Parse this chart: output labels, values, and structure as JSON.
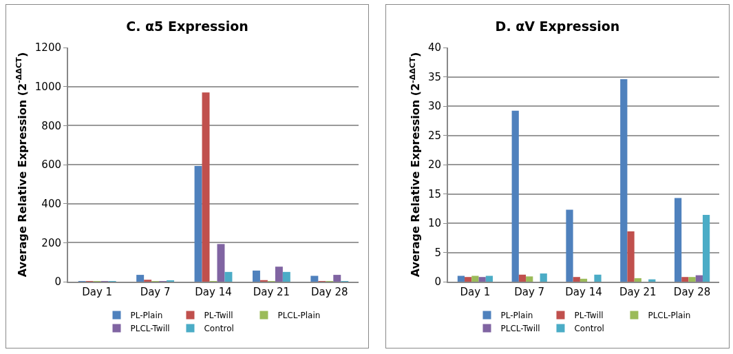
{
  "chart_data": [
    {
      "type": "bar",
      "title": "C. α5 Expression",
      "ylabel": "Average Relative Expression (2$^{-ΔΔCT}$)",
      "categories": [
        "Day 1",
        "Day 7",
        "Day 14",
        "Day 21",
        "Day 28"
      ],
      "ylim": [
        0,
        1200
      ],
      "yticks": [
        0,
        200,
        400,
        600,
        800,
        1000,
        1200
      ],
      "grid": "y",
      "legend": "bottom",
      "series": [
        {
          "name": "PL-Plain",
          "color": "#4f81bd",
          "values": [
            1,
            35,
            593,
            57,
            30
          ]
        },
        {
          "name": "PL-Twill",
          "color": "#c0504d",
          "values": [
            1,
            10,
            970,
            8,
            1
          ]
        },
        {
          "name": "PLCL-Plain",
          "color": "#9bbb59",
          "values": [
            1,
            1,
            1,
            1,
            1
          ]
        },
        {
          "name": "PLCL-Twill",
          "color": "#8064a2",
          "values": [
            1,
            1,
            193,
            77,
            35
          ]
        },
        {
          "name": "Control",
          "color": "#4bacc6",
          "values": [
            1,
            7,
            50,
            50,
            1
          ]
        }
      ]
    },
    {
      "type": "bar",
      "title": "D. αV Expression",
      "ylabel": "Average Relative Expression (2$^{-ΔΔCT}$)",
      "categories": [
        "Day 1",
        "Day 7",
        "Day 14",
        "Day 21",
        "Day 28"
      ],
      "ylim": [
        0,
        40
      ],
      "yticks": [
        0,
        5,
        10,
        15,
        20,
        25,
        30,
        35,
        40
      ],
      "grid": "y",
      "legend": "bottom",
      "series": [
        {
          "name": "PL-Plain",
          "color": "#4f81bd",
          "values": [
            1,
            29.2,
            12.3,
            34.6,
            14.3
          ]
        },
        {
          "name": "PL-Twill",
          "color": "#c0504d",
          "values": [
            0.8,
            1.2,
            0.8,
            8.6,
            0.8
          ]
        },
        {
          "name": "PLCL-Plain",
          "color": "#9bbb59",
          "values": [
            1,
            0.9,
            0.5,
            0.6,
            0.8
          ]
        },
        {
          "name": "PLCL-Twill",
          "color": "#8064a2",
          "values": [
            0.8,
            0,
            0,
            0,
            1.1
          ]
        },
        {
          "name": "Control",
          "color": "#4bacc6",
          "values": [
            1,
            1.4,
            1.2,
            0.4,
            11.4
          ]
        }
      ]
    }
  ]
}
